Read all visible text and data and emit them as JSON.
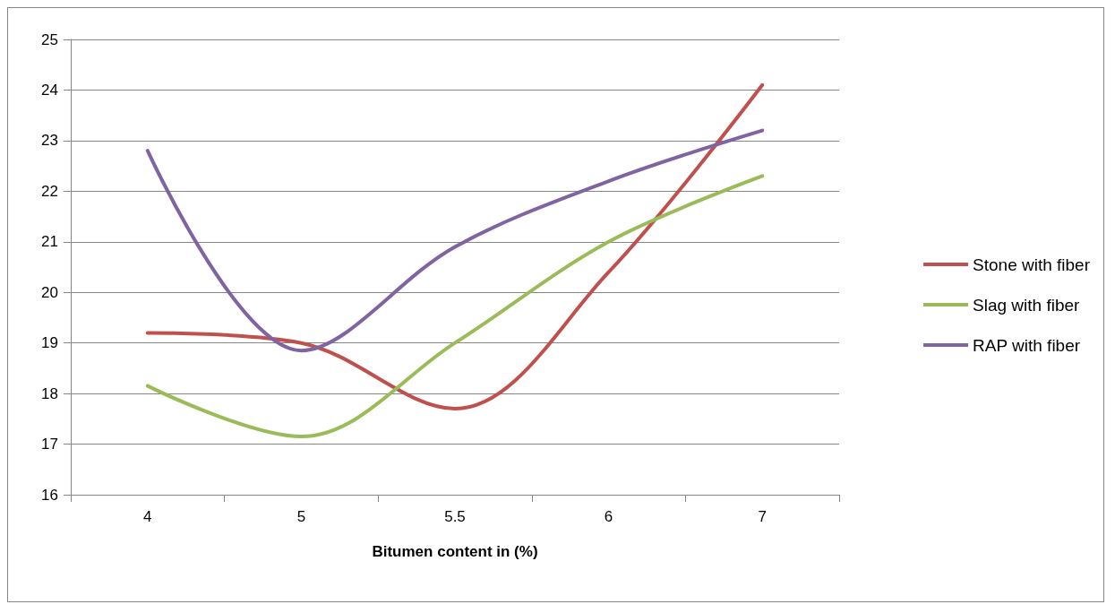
{
  "chart_data": {
    "type": "line",
    "xlabel": "Bitumen content in (%)",
    "categories": [
      "4",
      "5",
      "5.5",
      "6",
      "7"
    ],
    "series": [
      {
        "name": "Stone with fiber",
        "color": "#c0504d",
        "values": [
          19.2,
          19.0,
          17.7,
          20.4,
          24.1
        ]
      },
      {
        "name": "Slag with fiber",
        "color": "#9bbb59",
        "values": [
          18.15,
          17.15,
          19.0,
          21.0,
          22.3
        ]
      },
      {
        "name": "RAP with fiber",
        "color": "#8064a2",
        "values": [
          22.8,
          18.85,
          20.9,
          22.2,
          23.2
        ]
      }
    ],
    "ylim": [
      16,
      25
    ],
    "yticks": [
      16,
      17,
      18,
      19,
      20,
      21,
      22,
      23,
      24,
      25
    ],
    "grid": "y",
    "legend": "right",
    "marker": "none",
    "line_style": "solid"
  }
}
